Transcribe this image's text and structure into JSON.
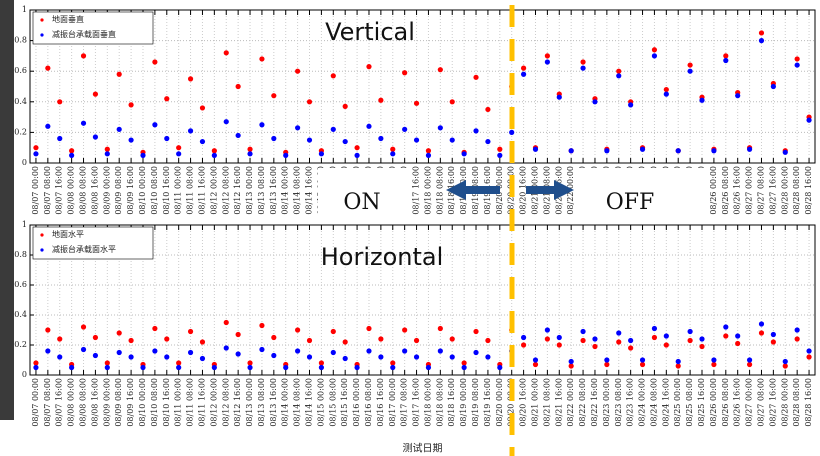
{
  "chart_data": [
    {
      "type": "scatter",
      "annotation": "Vertical",
      "legend": "upper left",
      "grid": true,
      "ylim": [
        0,
        1
      ],
      "yticks": [
        0,
        0.2,
        0.4,
        0.6,
        0.8,
        1
      ],
      "categories": [
        "08/07 00:00",
        "08/07 08:00",
        "08/07 16:00",
        "08/08 00:00",
        "08/08 08:00",
        "08/08 16:00",
        "08/09 00:00",
        "08/09 08:00",
        "08/09 16:00",
        "08/10 00:00",
        "08/10 08:00",
        "08/10 16:00",
        "08/11 00:00",
        "08/11 08:00",
        "08/11 16:00",
        "08/12 00:00",
        "08/12 08:00",
        "08/12 16:00",
        "08/13 00:00",
        "08/13 08:00",
        "08/13 16:00",
        "08/14 00:00",
        "08/14 08:00",
        "08/14 16:00",
        "08/15 00:00",
        "08/15 08:00",
        "08/15 16:00",
        "08/16 00:00",
        "08/16 08:00",
        "08/16 16:00",
        "08/17 00:00",
        "08/17 08:00",
        "08/17 16:00",
        "08/18 00:00",
        "08/18 08:00",
        "08/18 16:00",
        "08/19 00:00",
        "08/19 08:00",
        "08/19 16:00",
        "08/20 00:00",
        "08/20 08:00",
        "08/20 16:00",
        "08/21 00:00",
        "08/21 08:00",
        "08/21 16:00",
        "08/22 00:00",
        "08/22 08:00",
        "08/22 16:00",
        "08/23 00:00",
        "08/23 08:00",
        "08/23 16:00",
        "08/24 00:00",
        "08/24 08:00",
        "08/24 16:00",
        "08/25 00:00",
        "08/25 08:00",
        "08/25 16:00",
        "08/26 00:00",
        "08/26 08:00",
        "08/26 16:00",
        "08/27 00:00",
        "08/27 08:00",
        "08/27 16:00",
        "08/28 00:00",
        "08/28 08:00",
        "08/28 16:00"
      ],
      "series": [
        {
          "name": "地面垂直",
          "color": "#ff0000",
          "values": [
            0.1,
            0.62,
            0.4,
            0.08,
            0.7,
            0.45,
            0.09,
            0.58,
            0.38,
            0.07,
            0.66,
            0.42,
            0.1,
            0.55,
            0.36,
            0.08,
            0.72,
            0.5,
            0.09,
            0.68,
            0.44,
            0.07,
            0.6,
            0.4,
            0.08,
            0.57,
            0.37,
            0.1,
            0.63,
            0.41,
            0.09,
            0.59,
            0.39,
            0.08,
            0.61,
            0.4,
            0.07,
            0.56,
            0.35,
            0.09,
            0.5,
            0.62,
            0.1,
            0.7,
            0.45,
            0.08,
            0.66,
            0.42,
            0.09,
            0.6,
            0.4,
            0.1,
            0.74,
            0.48,
            0.08,
            0.64,
            0.43,
            0.09,
            0.7,
            0.46,
            0.1,
            0.85,
            0.52,
            0.08,
            0.68,
            0.3
          ]
        },
        {
          "name": "减振台承载面垂直",
          "color": "#0000ff",
          "values": [
            0.06,
            0.24,
            0.16,
            0.05,
            0.26,
            0.17,
            0.06,
            0.22,
            0.15,
            0.05,
            0.25,
            0.16,
            0.06,
            0.21,
            0.14,
            0.05,
            0.27,
            0.18,
            0.06,
            0.25,
            0.16,
            0.05,
            0.23,
            0.15,
            0.06,
            0.22,
            0.14,
            0.05,
            0.24,
            0.16,
            0.06,
            0.22,
            0.15,
            0.05,
            0.23,
            0.15,
            0.06,
            0.21,
            0.14,
            0.05,
            0.2,
            0.58,
            0.09,
            0.66,
            0.43,
            0.08,
            0.62,
            0.4,
            0.08,
            0.57,
            0.38,
            0.09,
            0.7,
            0.45,
            0.08,
            0.6,
            0.41,
            0.08,
            0.67,
            0.44,
            0.09,
            0.8,
            0.5,
            0.07,
            0.64,
            0.28
          ]
        }
      ]
    },
    {
      "type": "scatter",
      "annotation": "Horizontal",
      "legend": "upper left",
      "grid": true,
      "xlabel": "测试日期",
      "ylim": [
        0,
        1
      ],
      "yticks": [
        0,
        0.2,
        0.4,
        0.6,
        0.8,
        1
      ],
      "categories": [
        "08/07 00:00",
        "08/07 08:00",
        "08/07 16:00",
        "08/08 00:00",
        "08/08 08:00",
        "08/08 16:00",
        "08/09 00:00",
        "08/09 08:00",
        "08/09 16:00",
        "08/10 00:00",
        "08/10 08:00",
        "08/10 16:00",
        "08/11 00:00",
        "08/11 08:00",
        "08/11 16:00",
        "08/12 00:00",
        "08/12 08:00",
        "08/12 16:00",
        "08/13 00:00",
        "08/13 08:00",
        "08/13 16:00",
        "08/14 00:00",
        "08/14 08:00",
        "08/14 16:00",
        "08/15 00:00",
        "08/15 08:00",
        "08/15 16:00",
        "08/16 00:00",
        "08/16 08:00",
        "08/16 16:00",
        "08/17 00:00",
        "08/17 08:00",
        "08/17 16:00",
        "08/18 00:00",
        "08/18 08:00",
        "08/18 16:00",
        "08/19 00:00",
        "08/19 08:00",
        "08/19 16:00",
        "08/20 00:00",
        "08/20 08:00",
        "08/20 16:00",
        "08/21 00:00",
        "08/21 08:00",
        "08/21 16:00",
        "08/22 00:00",
        "08/22 08:00",
        "08/22 16:00",
        "08/23 00:00",
        "08/23 08:00",
        "08/23 16:00",
        "08/24 00:00",
        "08/24 08:00",
        "08/24 16:00",
        "08/25 00:00",
        "08/25 08:00",
        "08/25 16:00",
        "08/26 00:00",
        "08/26 08:00",
        "08/26 16:00",
        "08/27 00:00",
        "08/27 08:00",
        "08/27 16:00",
        "08/28 00:00",
        "08/28 08:00",
        "08/28 16:00"
      ],
      "series": [
        {
          "name": "地面水平",
          "color": "#ff0000",
          "values": [
            0.08,
            0.3,
            0.24,
            0.07,
            0.32,
            0.25,
            0.08,
            0.28,
            0.23,
            0.07,
            0.31,
            0.24,
            0.08,
            0.29,
            0.22,
            0.07,
            0.35,
            0.27,
            0.08,
            0.33,
            0.25,
            0.07,
            0.3,
            0.23,
            0.08,
            0.29,
            0.22,
            0.07,
            0.31,
            0.24,
            0.08,
            0.3,
            0.23,
            0.07,
            0.31,
            0.24,
            0.08,
            0.29,
            0.23,
            0.07,
            0.3,
            0.2,
            0.07,
            0.24,
            0.2,
            0.06,
            0.23,
            0.19,
            0.07,
            0.22,
            0.18,
            0.07,
            0.25,
            0.2,
            0.06,
            0.23,
            0.19,
            0.07,
            0.26,
            0.21,
            0.07,
            0.28,
            0.22,
            0.06,
            0.24,
            0.12
          ]
        },
        {
          "name": "减振台承载面水平",
          "color": "#0000ff",
          "values": [
            0.05,
            0.16,
            0.12,
            0.05,
            0.17,
            0.13,
            0.05,
            0.15,
            0.12,
            0.05,
            0.16,
            0.12,
            0.05,
            0.15,
            0.11,
            0.05,
            0.18,
            0.14,
            0.05,
            0.17,
            0.13,
            0.05,
            0.16,
            0.12,
            0.05,
            0.15,
            0.11,
            0.05,
            0.16,
            0.12,
            0.05,
            0.16,
            0.12,
            0.05,
            0.16,
            0.12,
            0.05,
            0.15,
            0.12,
            0.05,
            0.16,
            0.25,
            0.1,
            0.3,
            0.25,
            0.09,
            0.29,
            0.24,
            0.1,
            0.28,
            0.23,
            0.1,
            0.31,
            0.26,
            0.09,
            0.29,
            0.24,
            0.1,
            0.32,
            0.26,
            0.1,
            0.34,
            0.27,
            0.09,
            0.3,
            0.16
          ]
        }
      ]
    }
  ],
  "overlay": {
    "on": "ON",
    "off": "OFF"
  }
}
